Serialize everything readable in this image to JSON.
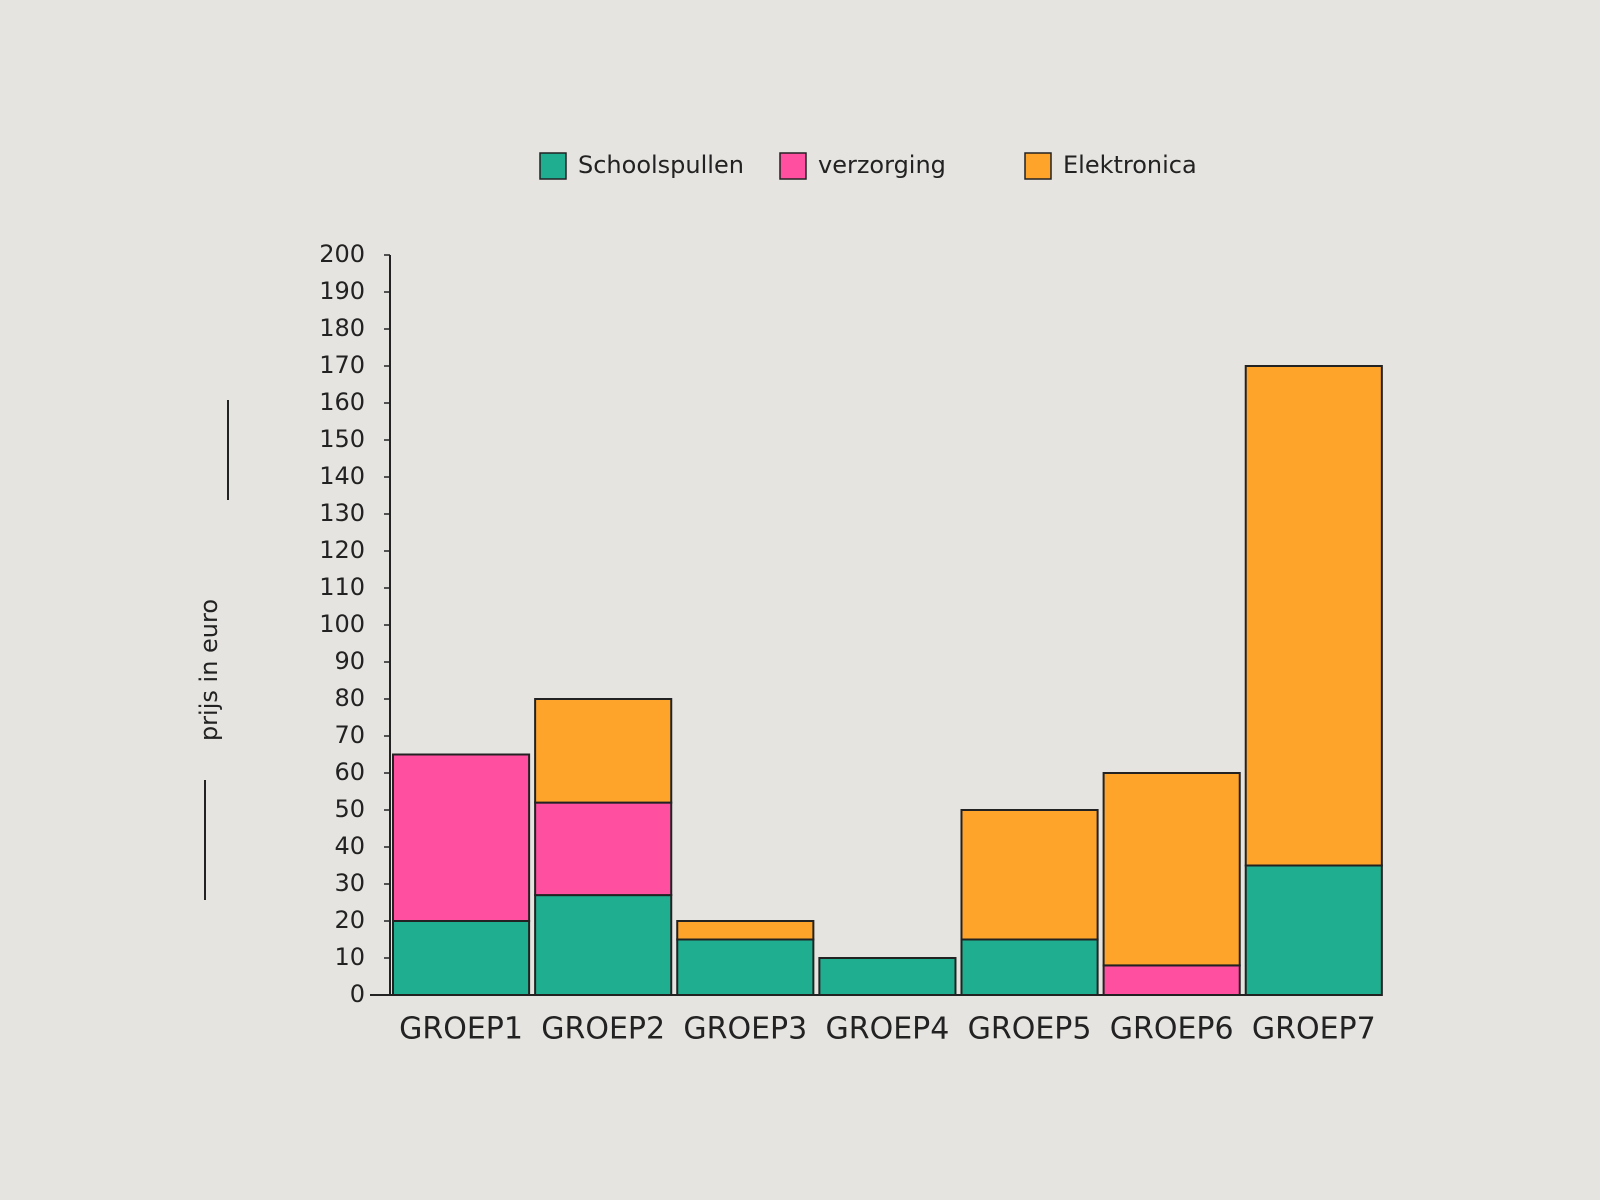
{
  "chart_data": {
    "type": "stacked_bar",
    "y_label": "prijs in euro",
    "categories": [
      "GROEP1",
      "GROEP2",
      "GROEP3",
      "GROEP4",
      "GROEP5",
      "GROEP6",
      "GROEP7"
    ],
    "series": [
      {
        "name": "Schoolspullen",
        "color": "#1fae8f",
        "values": [
          20,
          27,
          15,
          10,
          15,
          0,
          35
        ]
      },
      {
        "name": "verzorging",
        "color": "#ff4fa0",
        "values": [
          45,
          25,
          0,
          0,
          0,
          8,
          0
        ]
      },
      {
        "name": "Elektronica",
        "color": "#ffa42a",
        "values": [
          0,
          28,
          5,
          0,
          35,
          52,
          135
        ]
      }
    ],
    "ylim": [
      0,
      200
    ],
    "yticks": [
      0,
      10,
      20,
      30,
      40,
      50,
      60,
      70,
      80,
      90,
      100,
      110,
      120,
      130,
      140,
      150,
      160,
      170,
      180,
      190,
      200
    ],
    "legend": "top"
  }
}
